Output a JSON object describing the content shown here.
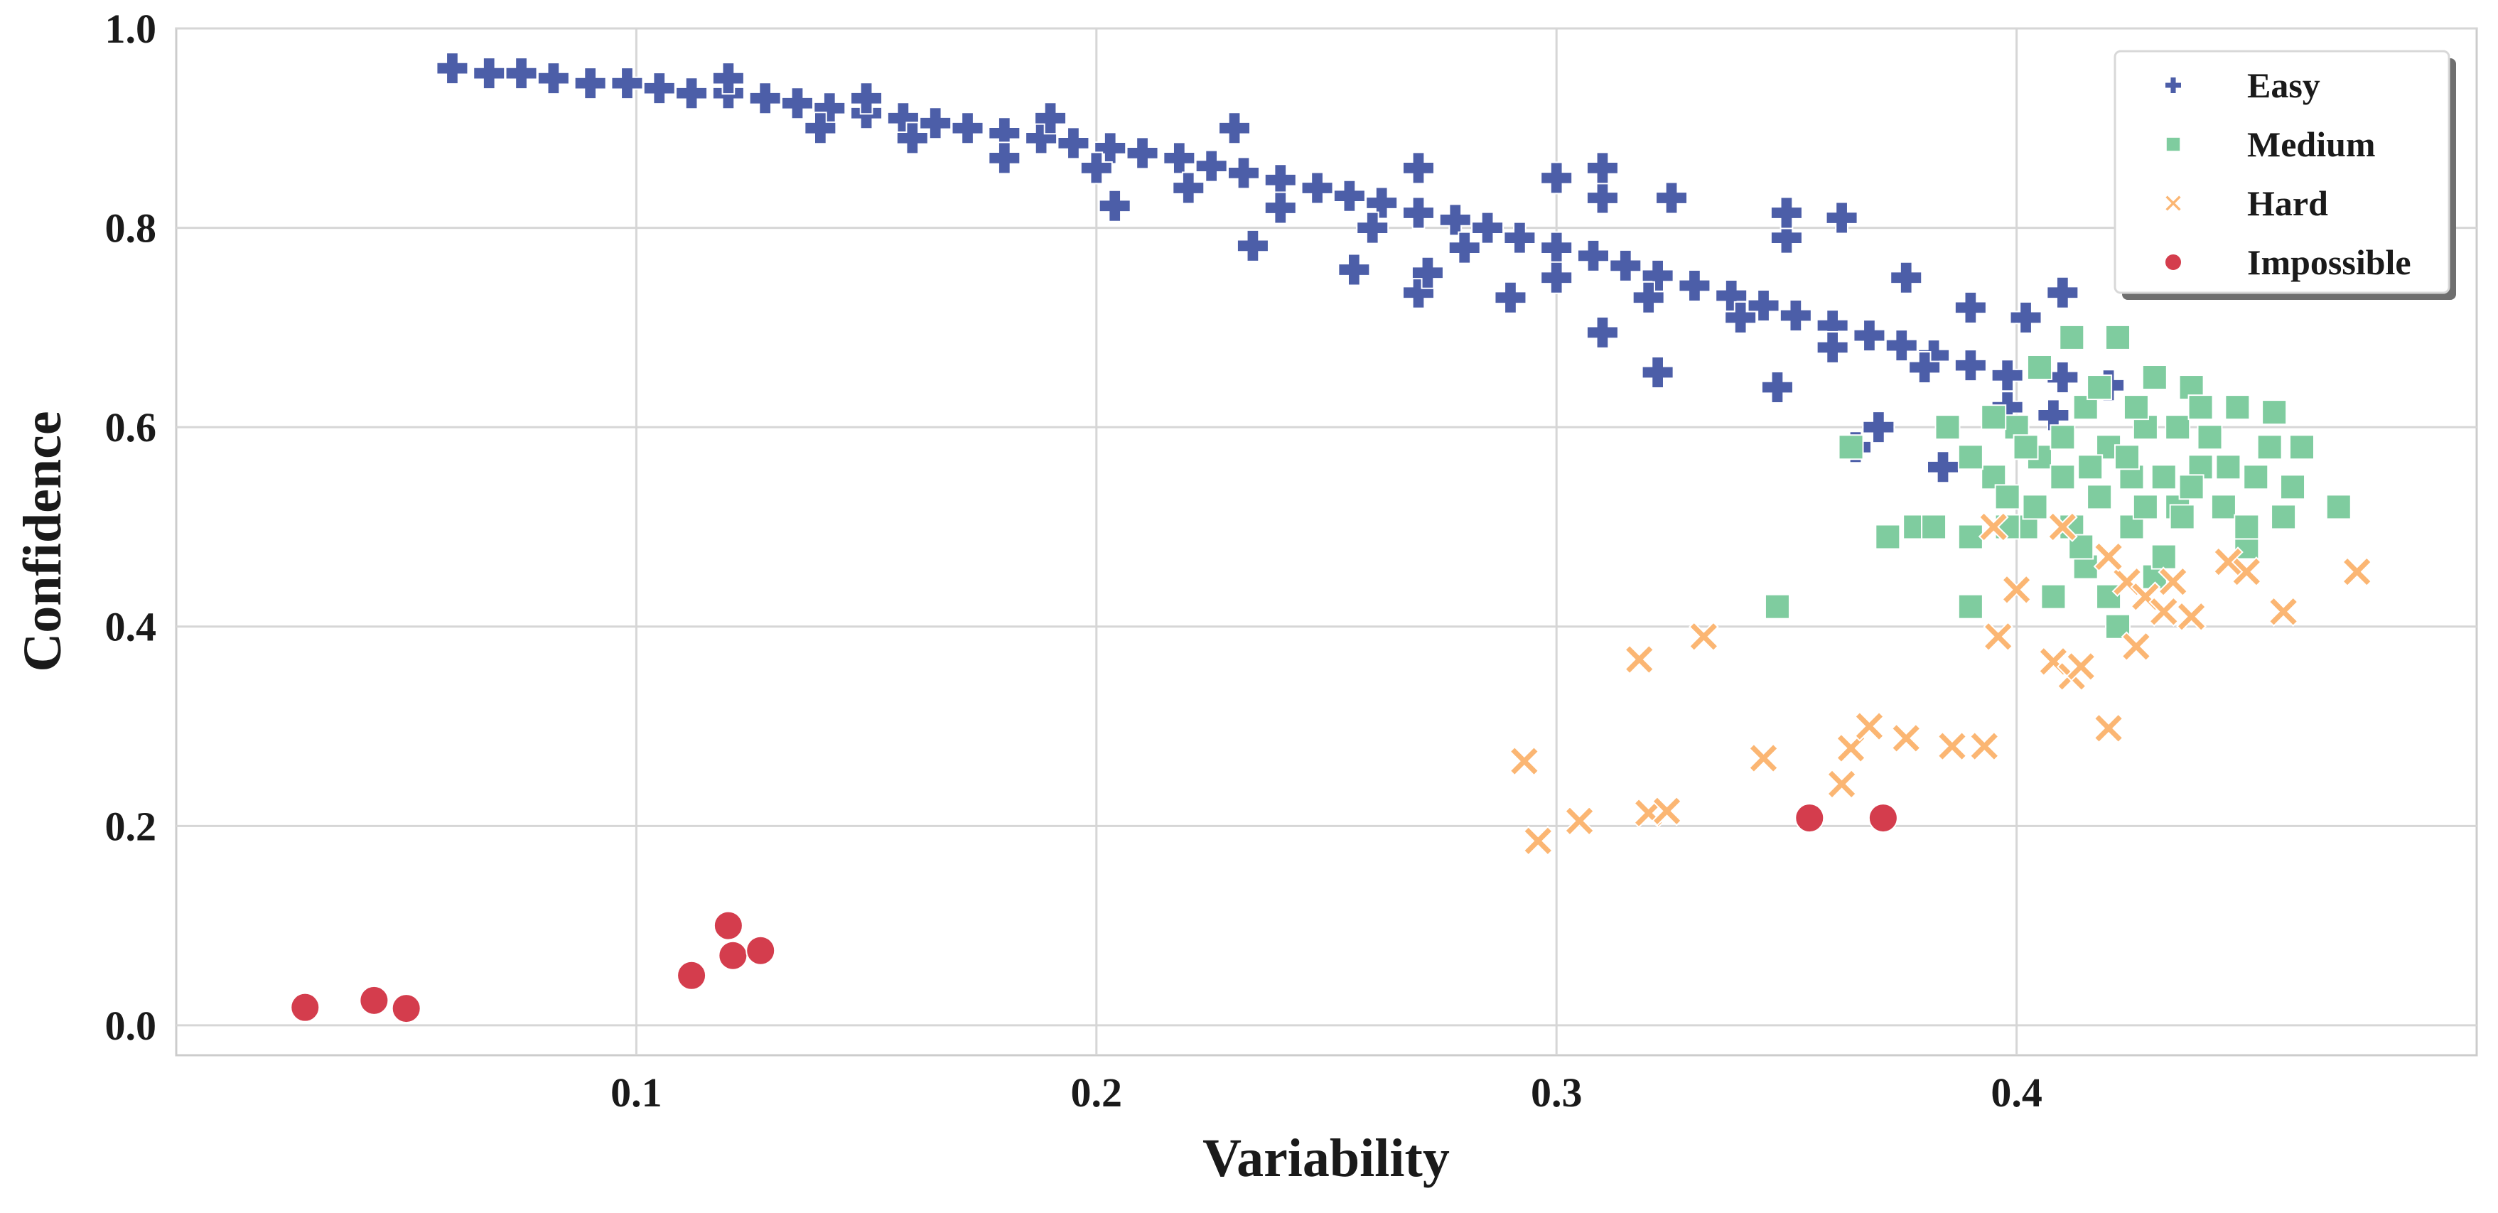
{
  "chart_data": {
    "type": "scatter",
    "title": "",
    "xlabel": "Variability",
    "ylabel": "Confidence",
    "xlim": [
      0.0,
      0.5
    ],
    "ylim": [
      -0.03,
      1.0
    ],
    "xticks": [
      0.1,
      0.2,
      0.3,
      0.4
    ],
    "xtick_labels": [
      "0.1",
      "0.2",
      "0.3",
      "0.4"
    ],
    "yticks": [
      0.0,
      0.2,
      0.4,
      0.6,
      0.8,
      1.0
    ],
    "ytick_labels": [
      "0.0",
      "0.2",
      "0.4",
      "0.6",
      "0.8",
      "1.0"
    ],
    "grid": true,
    "legend_position": "top-right",
    "series": [
      {
        "name": "Easy",
        "marker": "plus",
        "color": "#4c5ea8",
        "points": [
          [
            0.06,
            0.96
          ],
          [
            0.068,
            0.955
          ],
          [
            0.075,
            0.955
          ],
          [
            0.082,
            0.95
          ],
          [
            0.09,
            0.945
          ],
          [
            0.098,
            0.945
          ],
          [
            0.105,
            0.94
          ],
          [
            0.112,
            0.935
          ],
          [
            0.12,
            0.935
          ],
          [
            0.128,
            0.93
          ],
          [
            0.135,
            0.925
          ],
          [
            0.142,
            0.92
          ],
          [
            0.15,
            0.915
          ],
          [
            0.158,
            0.91
          ],
          [
            0.165,
            0.905
          ],
          [
            0.172,
            0.9
          ],
          [
            0.18,
            0.895
          ],
          [
            0.188,
            0.89
          ],
          [
            0.195,
            0.885
          ],
          [
            0.203,
            0.88
          ],
          [
            0.21,
            0.875
          ],
          [
            0.218,
            0.87
          ],
          [
            0.225,
            0.862
          ],
          [
            0.232,
            0.855
          ],
          [
            0.24,
            0.848
          ],
          [
            0.248,
            0.84
          ],
          [
            0.255,
            0.832
          ],
          [
            0.262,
            0.825
          ],
          [
            0.27,
            0.815
          ],
          [
            0.278,
            0.808
          ],
          [
            0.285,
            0.8
          ],
          [
            0.292,
            0.79
          ],
          [
            0.3,
            0.78
          ],
          [
            0.308,
            0.772
          ],
          [
            0.315,
            0.762
          ],
          [
            0.322,
            0.752
          ],
          [
            0.33,
            0.742
          ],
          [
            0.338,
            0.732
          ],
          [
            0.345,
            0.722
          ],
          [
            0.352,
            0.712
          ],
          [
            0.36,
            0.702
          ],
          [
            0.368,
            0.692
          ],
          [
            0.375,
            0.682
          ],
          [
            0.382,
            0.672
          ],
          [
            0.39,
            0.662
          ],
          [
            0.398,
            0.652
          ],
          [
            0.14,
            0.9
          ],
          [
            0.16,
            0.89
          ],
          [
            0.18,
            0.87
          ],
          [
            0.2,
            0.86
          ],
          [
            0.22,
            0.84
          ],
          [
            0.24,
            0.82
          ],
          [
            0.26,
            0.8
          ],
          [
            0.28,
            0.78
          ],
          [
            0.3,
            0.75
          ],
          [
            0.32,
            0.73
          ],
          [
            0.34,
            0.71
          ],
          [
            0.36,
            0.68
          ],
          [
            0.38,
            0.66
          ],
          [
            0.12,
            0.95
          ],
          [
            0.15,
            0.93
          ],
          [
            0.19,
            0.91
          ],
          [
            0.23,
            0.9
          ],
          [
            0.27,
            0.86
          ],
          [
            0.31,
            0.83
          ],
          [
            0.35,
            0.79
          ],
          [
            0.39,
            0.72
          ],
          [
            0.204,
            0.822
          ],
          [
            0.234,
            0.782
          ],
          [
            0.256,
            0.758
          ],
          [
            0.27,
            0.735
          ],
          [
            0.272,
            0.755
          ],
          [
            0.29,
            0.73
          ],
          [
            0.31,
            0.695
          ],
          [
            0.322,
            0.655
          ],
          [
            0.348,
            0.64
          ],
          [
            0.35,
            0.815
          ],
          [
            0.362,
            0.81
          ],
          [
            0.365,
            0.58
          ],
          [
            0.384,
            0.56
          ],
          [
            0.398,
            0.62
          ],
          [
            0.41,
            0.735
          ],
          [
            0.41,
            0.65
          ],
          [
            0.42,
            0.642
          ],
          [
            0.402,
            0.71
          ],
          [
            0.408,
            0.612
          ],
          [
            0.31,
            0.86
          ],
          [
            0.3,
            0.85
          ],
          [
            0.325,
            0.83
          ],
          [
            0.37,
            0.6
          ],
          [
            0.376,
            0.75
          ]
        ]
      },
      {
        "name": "Medium",
        "marker": "square",
        "color": "#7fcc9f",
        "points": [
          [
            0.364,
            0.58
          ],
          [
            0.372,
            0.49
          ],
          [
            0.378,
            0.5
          ],
          [
            0.382,
            0.5
          ],
          [
            0.385,
            0.6
          ],
          [
            0.39,
            0.49
          ],
          [
            0.39,
            0.42
          ],
          [
            0.395,
            0.55
          ],
          [
            0.398,
            0.53
          ],
          [
            0.4,
            0.6
          ],
          [
            0.402,
            0.5
          ],
          [
            0.405,
            0.57
          ],
          [
            0.405,
            0.66
          ],
          [
            0.408,
            0.43
          ],
          [
            0.41,
            0.55
          ],
          [
            0.412,
            0.5
          ],
          [
            0.412,
            0.69
          ],
          [
            0.415,
            0.62
          ],
          [
            0.415,
            0.46
          ],
          [
            0.418,
            0.53
          ],
          [
            0.42,
            0.43
          ],
          [
            0.42,
            0.58
          ],
          [
            0.422,
            0.4
          ],
          [
            0.422,
            0.69
          ],
          [
            0.425,
            0.55
          ],
          [
            0.425,
            0.5
          ],
          [
            0.428,
            0.6
          ],
          [
            0.43,
            0.45
          ],
          [
            0.43,
            0.65
          ],
          [
            0.432,
            0.55
          ],
          [
            0.435,
            0.52
          ],
          [
            0.435,
            0.6
          ],
          [
            0.438,
            0.64
          ],
          [
            0.44,
            0.56
          ],
          [
            0.442,
            0.59
          ],
          [
            0.445,
            0.52
          ],
          [
            0.448,
            0.62
          ],
          [
            0.45,
            0.48
          ],
          [
            0.45,
            0.5
          ],
          [
            0.452,
            0.55
          ],
          [
            0.455,
            0.58
          ],
          [
            0.458,
            0.51
          ],
          [
            0.46,
            0.54
          ],
          [
            0.456,
            0.615
          ],
          [
            0.462,
            0.58
          ],
          [
            0.47,
            0.52
          ],
          [
            0.348,
            0.42
          ],
          [
            0.39,
            0.57
          ],
          [
            0.395,
            0.61
          ],
          [
            0.41,
            0.59
          ],
          [
            0.418,
            0.64
          ],
          [
            0.428,
            0.52
          ],
          [
            0.432,
            0.47
          ],
          [
            0.44,
            0.62
          ],
          [
            0.398,
            0.5
          ],
          [
            0.404,
            0.52
          ],
          [
            0.414,
            0.48
          ],
          [
            0.424,
            0.57
          ],
          [
            0.436,
            0.51
          ],
          [
            0.446,
            0.56
          ],
          [
            0.402,
            0.58
          ],
          [
            0.416,
            0.56
          ],
          [
            0.426,
            0.62
          ],
          [
            0.438,
            0.54
          ]
        ]
      },
      {
        "name": "Hard",
        "marker": "cross",
        "color": "#fbb673",
        "points": [
          [
            0.293,
            0.265
          ],
          [
            0.296,
            0.185
          ],
          [
            0.305,
            0.205
          ],
          [
            0.318,
            0.367
          ],
          [
            0.32,
            0.213
          ],
          [
            0.324,
            0.215
          ],
          [
            0.332,
            0.39
          ],
          [
            0.345,
            0.268
          ],
          [
            0.362,
            0.242
          ],
          [
            0.364,
            0.278
          ],
          [
            0.368,
            0.3
          ],
          [
            0.376,
            0.288
          ],
          [
            0.386,
            0.28
          ],
          [
            0.393,
            0.28
          ],
          [
            0.396,
            0.39
          ],
          [
            0.4,
            0.437
          ],
          [
            0.408,
            0.365
          ],
          [
            0.412,
            0.35
          ],
          [
            0.414,
            0.36
          ],
          [
            0.42,
            0.298
          ],
          [
            0.424,
            0.445
          ],
          [
            0.426,
            0.38
          ],
          [
            0.428,
            0.43
          ],
          [
            0.432,
            0.415
          ],
          [
            0.434,
            0.445
          ],
          [
            0.438,
            0.41
          ],
          [
            0.446,
            0.465
          ],
          [
            0.45,
            0.455
          ],
          [
            0.458,
            0.415
          ],
          [
            0.474,
            0.455
          ],
          [
            0.395,
            0.5
          ],
          [
            0.41,
            0.5
          ],
          [
            0.42,
            0.47
          ]
        ]
      },
      {
        "name": "Impossible",
        "marker": "circle",
        "color": "#d43d4d",
        "points": [
          [
            0.028,
            0.018
          ],
          [
            0.043,
            0.025
          ],
          [
            0.05,
            0.017
          ],
          [
            0.112,
            0.05
          ],
          [
            0.12,
            0.1
          ],
          [
            0.121,
            0.07
          ],
          [
            0.127,
            0.075
          ],
          [
            0.355,
            0.208
          ],
          [
            0.371,
            0.208
          ]
        ]
      }
    ]
  }
}
